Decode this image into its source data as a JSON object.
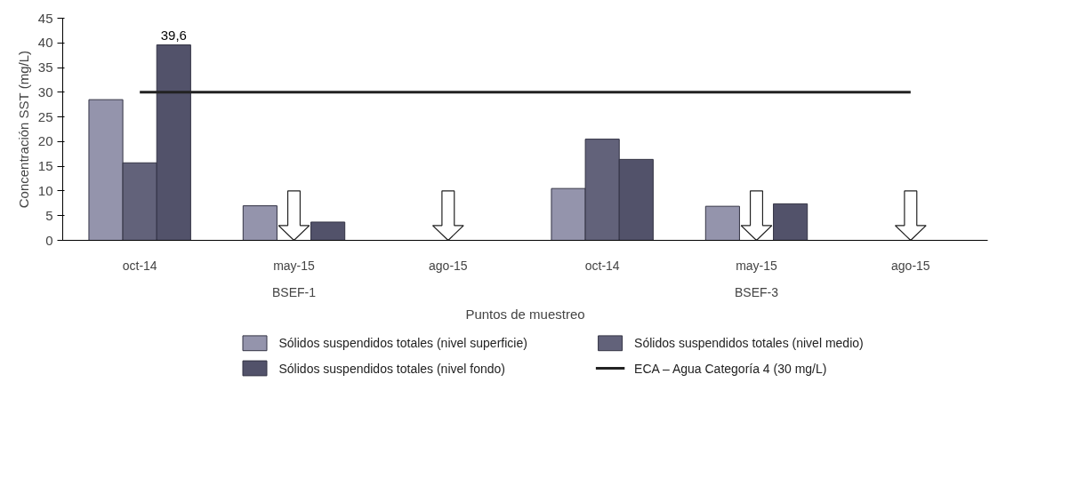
{
  "chart_data": {
    "type": "bar",
    "xlabel": "Puntos de muestreo",
    "ylabel": "Concentración SST (mg/L)",
    "categories": [
      "oct-14",
      "may-15",
      "ago-15",
      "oct-14",
      "may-15",
      "ago-15"
    ],
    "series": [
      {
        "name": "Sólidos suspendidos totales (nivel superficie)",
        "color": "#9494ac",
        "values": [
          28.5,
          7.0,
          null,
          10.5,
          6.9,
          null
        ]
      },
      {
        "name": "Sólidos suspendidos totales (nivel medio)",
        "color": "#62627a",
        "values": [
          15.7,
          null,
          null,
          20.5,
          null,
          null
        ]
      },
      {
        "name": "Sólidos suspendidos totales (nivel fondo)",
        "color": "#52526a",
        "values": [
          39.6,
          3.7,
          null,
          16.4,
          7.4,
          null
        ],
        "value_labels": [
          "39,6",
          null,
          null,
          null,
          null,
          null
        ]
      }
    ],
    "ref_lines": [
      {
        "axis": "y",
        "value": 30,
        "label": "ECA – Agua Categoría 4 (30 mg/L)",
        "color": "#222222"
      }
    ],
    "annotations": [
      "BSEF-1",
      "BSEF-3"
    ],
    "ylim": [
      0,
      45
    ],
    "yticks": [
      0,
      5,
      10,
      15,
      20,
      25,
      30,
      35,
      40,
      45
    ],
    "grid": false,
    "legend": "bottom"
  }
}
